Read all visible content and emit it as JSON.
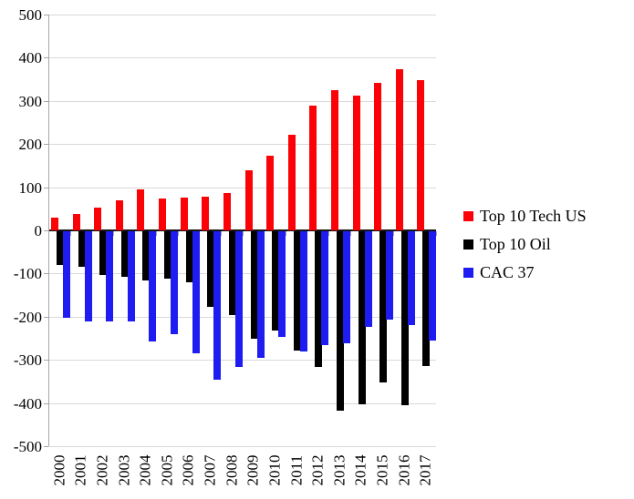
{
  "chart_data": {
    "type": "bar",
    "title": "",
    "xlabel": "",
    "ylabel": "",
    "categories": [
      "2000",
      "2001",
      "2002",
      "2003",
      "2004",
      "2005",
      "2006",
      "2007",
      "2008",
      "2009",
      "2010",
      "2011",
      "2012",
      "2013",
      "2014",
      "2015",
      "2016",
      "2017"
    ],
    "series": [
      {
        "name": "Top 10 Tech US",
        "color": "#fb0306",
        "values": [
          30,
          39,
          52,
          69,
          95,
          73,
          76,
          79,
          87,
          140,
          172,
          222,
          290,
          325,
          313,
          341,
          373,
          348
        ]
      },
      {
        "name": "Top 10 Oil",
        "color": "#000000",
        "values": [
          -80,
          -84,
          -103,
          -108,
          -115,
          -112,
          -121,
          -177,
          -196,
          -251,
          -232,
          -278,
          -317,
          -417,
          -403,
          -352,
          -406,
          -314
        ]
      },
      {
        "name": "CAC 37",
        "color": "#1e1cf0",
        "values": [
          -203,
          -212,
          -212,
          -210,
          -258,
          -240,
          -284,
          -345,
          -316,
          -296,
          -246,
          -280,
          -265,
          -262,
          -224,
          -207,
          -220,
          -256
        ]
      }
    ],
    "ylim": [
      -500,
      500
    ],
    "yticks": [
      500,
      400,
      300,
      200,
      100,
      0,
      -100,
      -200,
      -300,
      -400,
      -500
    ],
    "grid": true,
    "legend_position": "right"
  },
  "colors": {
    "background": "#ffffff",
    "gridline": "#d9d9d9",
    "zero_line": "#151515",
    "axis": "#a6a6a6",
    "text": "#000000"
  }
}
